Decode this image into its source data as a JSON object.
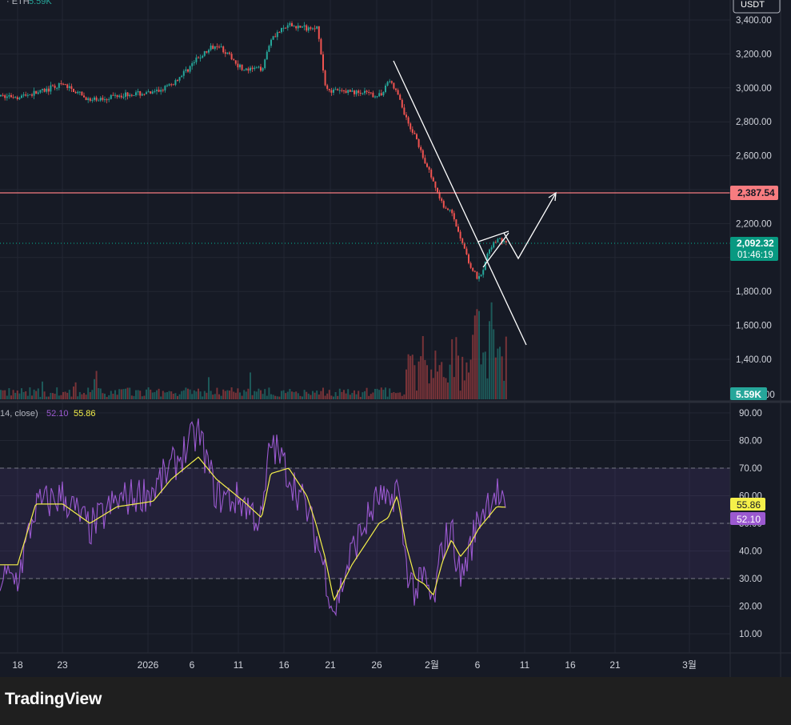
{
  "header": {
    "symbol_fragment": "· ETH",
    "volume_value": "5.59K",
    "currency_button": "USDT"
  },
  "price_pane": {
    "y_ticks": [
      "3,400.00",
      "3,200.00",
      "3,000.00",
      "2,800.00",
      "2,600.00",
      "2,200.00",
      "1,800.00",
      "1,600.00",
      "1,400.00"
    ],
    "tick_values": [
      3400,
      3200,
      3000,
      2800,
      2600,
      2200,
      1800,
      1600,
      1400
    ],
    "bottom_tick_fragment": "00",
    "resistance_label": "2,387.54",
    "resistance_value": 2387.54,
    "last_price_label": "2,092.32",
    "last_price_value": 2092.32,
    "countdown": "01:46:19",
    "volume_badge": "5.59K",
    "colors": {
      "up": "#26a69a",
      "down": "#ef5350",
      "resistance": "#f77c80",
      "last_price": "#089981",
      "volume_badge": "#26a69a"
    }
  },
  "rsi_pane": {
    "legend_prefix": "14, close)",
    "rsi_value": "52.10",
    "ma_value": "55.86",
    "y_ticks": [
      "90.00",
      "80.00",
      "70.00",
      "60.00",
      "50.00",
      "40.00",
      "30.00",
      "20.00",
      "10.00"
    ],
    "tick_values": [
      90,
      80,
      70,
      60,
      50,
      40,
      30,
      20,
      10
    ],
    "upper_band": 70,
    "middle_band": 50,
    "lower_band": 30,
    "colors": {
      "rsi": "#9b59d0",
      "ma": "#f5f04a",
      "band_fill": "#7e57c2"
    }
  },
  "x_axis": {
    "labels": [
      "18",
      "23",
      "2026",
      "6",
      "11",
      "16",
      "21",
      "26",
      "2월",
      "6",
      "11",
      "16",
      "21",
      "3월"
    ]
  },
  "chart_data": {
    "type": "line",
    "title": "",
    "xlabel": "",
    "ylabel": "",
    "ylim": [
      1350,
      3450
    ],
    "x": [
      "12-18",
      "12-20",
      "12-23",
      "12-26",
      "12-29",
      "01-01",
      "01-03",
      "01-06",
      "01-08",
      "01-11",
      "01-13",
      "01-14",
      "01-16",
      "01-18",
      "01-19",
      "01-20",
      "01-21",
      "01-23",
      "01-26",
      "01-27",
      "01-28",
      "01-29",
      "01-30",
      "01-31",
      "02-01",
      "02-02",
      "02-03",
      "02-04",
      "02-05",
      "02-06",
      "02-07",
      "02-08",
      "02-09"
    ],
    "series": [
      {
        "values": [
          2950,
          2970,
          3020,
          2920,
          2960,
          2970,
          3020,
          3180,
          3260,
          3100,
          3120,
          3300,
          3370,
          3350,
          3370,
          3000,
          2980,
          2980,
          2950,
          3050,
          2960,
          2800,
          2700,
          2550,
          2440,
          2300,
          2250,
          2100,
          1950,
          1870,
          2030,
          2110,
          2092
        ]
      }
    ],
    "rsi": {
      "ylim": [
        5,
        95
      ],
      "rsi_values": [
        30,
        56,
        60,
        48,
        58,
        62,
        70,
        83,
        60,
        58,
        50,
        80,
        68,
        55,
        45,
        33,
        18,
        40,
        60,
        55,
        65,
        35,
        25,
        30,
        20,
        42,
        48,
        30,
        40,
        52,
        58,
        62,
        52.1
      ],
      "ma_values": [
        35,
        57,
        57,
        50,
        56,
        58,
        66,
        74,
        66,
        58,
        52,
        68,
        70,
        60,
        50,
        38,
        22,
        35,
        50,
        52,
        60,
        42,
        30,
        28,
        24,
        36,
        44,
        38,
        42,
        48,
        52,
        56,
        55.86
      ]
    },
    "annotations": [
      {
        "type": "trendline",
        "from": [
          "01-28",
          3040
        ],
        "to": [
          "02-10",
          1520
        ]
      },
      {
        "type": "trendline",
        "from": [
          "02-06",
          1900
        ],
        "to": [
          "02-08",
          2120
        ]
      },
      {
        "type": "projection",
        "points": [
          [
            "02-08",
            2140
          ],
          [
            "02-10",
            2000
          ],
          [
            "02-14",
            2387.54
          ]
        ]
      },
      {
        "type": "horizontal_line",
        "value": 2387.54
      }
    ]
  }
}
